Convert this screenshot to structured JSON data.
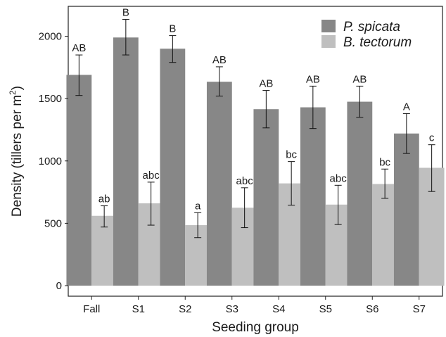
{
  "chart_data": {
    "type": "bar",
    "xlabel": "Seeding group",
    "ylabel": "Density (tillers per m",
    "ylabel_sup": "2",
    "ylabel_close": ")",
    "categories": [
      "Fall",
      "S1",
      "S2",
      "S3",
      "S4",
      "S5",
      "S6",
      "S7"
    ],
    "ylim": [
      0,
      2200
    ],
    "yticks": [
      0,
      500,
      1000,
      1500,
      2000
    ],
    "grid": false,
    "legend_position": "top-right",
    "series": [
      {
        "name": "P. spicata",
        "color": "#878787",
        "values": [
          1690,
          1990,
          1900,
          1635,
          1415,
          1430,
          1475,
          1220
        ],
        "err_low": [
          1525,
          1850,
          1790,
          1520,
          1265,
          1260,
          1350,
          1060
        ],
        "err_high": [
          1850,
          2135,
          2005,
          1755,
          1565,
          1600,
          1600,
          1380
        ],
        "letters": [
          "AB",
          "B",
          "B",
          "AB",
          "AB",
          "AB",
          "AB",
          "A"
        ]
      },
      {
        "name": "B. tectorum",
        "color": "#bfbfbf",
        "values": [
          560,
          660,
          485,
          625,
          820,
          650,
          815,
          945
        ],
        "err_low": [
          470,
          485,
          385,
          465,
          645,
          490,
          700,
          755
        ],
        "err_high": [
          640,
          830,
          585,
          785,
          995,
          805,
          935,
          1130
        ],
        "letters": [
          "ab",
          "abc",
          "a",
          "abc",
          "bc",
          "abc",
          "bc",
          "c"
        ]
      }
    ]
  }
}
